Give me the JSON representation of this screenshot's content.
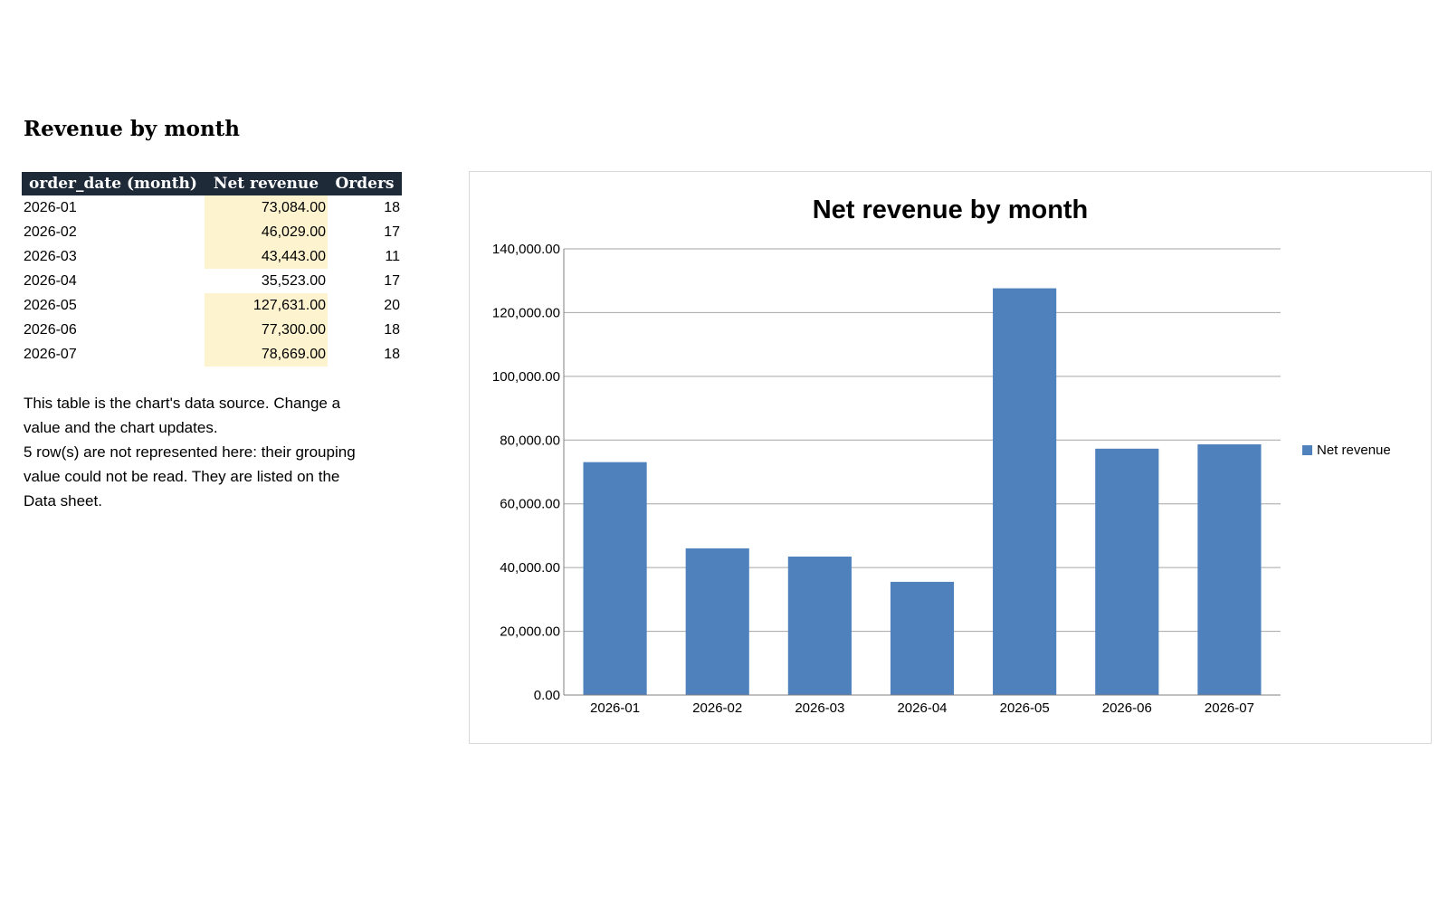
{
  "page": {
    "title": "Revenue by month"
  },
  "table": {
    "headers": [
      "order_date (month)",
      "Net revenue",
      "Orders"
    ],
    "rows": [
      {
        "month": "2026-01",
        "revenue": "73,084.00",
        "orders": "18",
        "highlight": true
      },
      {
        "month": "2026-02",
        "revenue": "46,029.00",
        "orders": "17",
        "highlight": true
      },
      {
        "month": "2026-03",
        "revenue": "43,443.00",
        "orders": "11",
        "highlight": true
      },
      {
        "month": "2026-04",
        "revenue": "35,523.00",
        "orders": "17",
        "highlight": false
      },
      {
        "month": "2026-05",
        "revenue": "127,631.00",
        "orders": "20",
        "highlight": true
      },
      {
        "month": "2026-06",
        "revenue": "77,300.00",
        "orders": "18",
        "highlight": true
      },
      {
        "month": "2026-07",
        "revenue": "78,669.00",
        "orders": "18",
        "highlight": true
      }
    ]
  },
  "notes": {
    "line1": "This table is the chart's data source. Change a value and the chart updates.",
    "line2": "5 row(s) are not represented here: their grouping value could not be read. They are listed on the Data sheet."
  },
  "colors": {
    "header_bg": "#1f2a38",
    "highlight": "#fdf3cf",
    "bar": "#4f81bd",
    "grid": "#a6a6a6"
  },
  "chart_data": {
    "type": "bar",
    "title": "Net revenue by month",
    "categories": [
      "2026-01",
      "2026-02",
      "2026-03",
      "2026-04",
      "2026-05",
      "2026-06",
      "2026-07"
    ],
    "series": [
      {
        "name": "Net revenue",
        "values": [
          73084,
          46029,
          43443,
          35523,
          127631,
          77300,
          78669
        ]
      }
    ],
    "ylim": [
      0,
      140000
    ],
    "yticks": [
      "0.00",
      "20,000.00",
      "40,000.00",
      "60,000.00",
      "80,000.00",
      "100,000.00",
      "120,000.00",
      "140,000.00"
    ],
    "xlabel": "",
    "ylabel": "",
    "grid": true,
    "legend_position": "right"
  }
}
